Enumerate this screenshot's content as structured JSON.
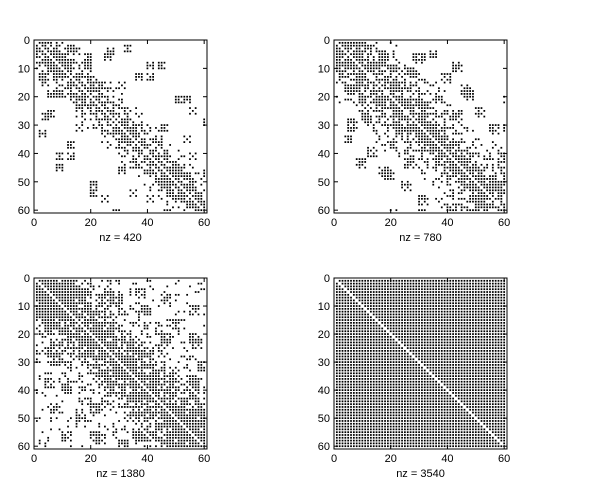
{
  "chart_data": [
    {
      "type": "scatter",
      "subtype": "sparsity-pattern",
      "xlabel": "nz = 420",
      "xlim": [
        0,
        61
      ],
      "ylim": [
        0,
        61
      ],
      "y_reversed": true,
      "xticks": [
        0,
        20,
        40,
        60
      ],
      "yticks": [
        0,
        10,
        20,
        30,
        40,
        50,
        60
      ],
      "marker_color": "#000000",
      "mode": "band",
      "band": [
        [
          0.06,
          0.1
        ],
        [
          0.2,
          0.95
        ]
      ],
      "clusters": [
        [
          5,
          3,
          3,
          1
        ],
        [
          10,
          5,
          3,
          1
        ],
        [
          14,
          3,
          3,
          1
        ],
        [
          2,
          12,
          3,
          1
        ],
        [
          5,
          18,
          3,
          1
        ],
        [
          3,
          26,
          3,
          1
        ],
        [
          12,
          40,
          3,
          1
        ],
        [
          8,
          44,
          3,
          1
        ],
        [
          20,
          53,
          3,
          1
        ],
        [
          18,
          8,
          3,
          1
        ],
        [
          25,
          5,
          3,
          1
        ],
        [
          32,
          2,
          3,
          1
        ],
        [
          40,
          8,
          3,
          1
        ],
        [
          36,
          12,
          3,
          1
        ],
        [
          55,
          24,
          3,
          1
        ],
        [
          53,
          34,
          3,
          1
        ],
        [
          50,
          20,
          3,
          1
        ],
        [
          45,
          30,
          3,
          1
        ],
        [
          30,
          15,
          3,
          1
        ],
        [
          40,
          55,
          3,
          1
        ],
        [
          28,
          60,
          3,
          1
        ],
        [
          60,
          46,
          3,
          1
        ]
      ],
      "block_density": 0.0,
      "seed": 11
    },
    {
      "type": "scatter",
      "subtype": "sparsity-pattern",
      "xlabel": "nz = 780",
      "xlim": [
        0,
        61
      ],
      "ylim": [
        0,
        61
      ],
      "y_reversed": true,
      "xticks": [
        0,
        20,
        40,
        60
      ],
      "yticks": [
        0,
        10,
        20,
        30,
        40,
        50,
        60
      ],
      "marker_color": "#000000",
      "mode": "band",
      "band": [
        [
          0.12,
          0.7
        ],
        [
          0.35,
          0.8
        ]
      ],
      "clusters": [
        [
          6,
          6,
          4,
          1
        ],
        [
          16,
          4,
          4,
          1
        ],
        [
          28,
          5,
          4,
          1
        ],
        [
          34,
          4,
          3,
          1
        ],
        [
          42,
          8,
          4,
          1
        ],
        [
          6,
          16,
          4,
          1
        ],
        [
          10,
          26,
          4,
          1
        ],
        [
          5,
          30,
          3,
          1
        ],
        [
          12,
          38,
          4,
          1
        ],
        [
          18,
          46,
          4,
          1
        ],
        [
          25,
          42,
          4,
          1
        ],
        [
          30,
          60,
          4,
          1
        ],
        [
          40,
          58,
          4,
          1
        ],
        [
          50,
          24,
          4,
          1
        ],
        [
          55,
          30,
          4,
          1
        ],
        [
          55,
          50,
          4,
          1
        ],
        [
          50,
          57,
          4,
          1
        ],
        [
          45,
          16,
          4,
          1
        ],
        [
          22,
          30,
          3,
          1
        ],
        [
          36,
          20,
          3,
          1
        ],
        [
          60,
          48,
          3,
          1
        ],
        [
          60,
          20,
          3,
          1
        ]
      ],
      "block_density": 0.0,
      "seed": 23
    },
    {
      "type": "scatter",
      "subtype": "sparsity-pattern",
      "xlabel": "nz = 1380",
      "xlim": [
        0,
        61
      ],
      "ylim": [
        0,
        61
      ],
      "y_reversed": true,
      "xticks": [
        0,
        20,
        40,
        60
      ],
      "yticks": [
        0,
        10,
        20,
        30,
        40,
        50,
        60
      ],
      "marker_color": "#000000",
      "mode": "band",
      "band": [
        [
          0.25,
          0.85
        ],
        [
          0.5,
          0.65
        ]
      ],
      "clusters": [
        [
          6,
          6,
          5,
          1
        ],
        [
          15,
          4,
          4,
          1
        ],
        [
          25,
          5,
          4,
          1
        ],
        [
          36,
          4,
          4,
          1
        ],
        [
          45,
          6,
          4,
          1
        ],
        [
          5,
          15,
          4,
          1
        ],
        [
          6,
          28,
          4,
          1
        ],
        [
          10,
          38,
          4,
          1
        ],
        [
          15,
          48,
          4,
          1
        ],
        [
          20,
          55,
          4,
          1
        ],
        [
          30,
          58,
          4,
          1
        ],
        [
          40,
          55,
          4,
          1
        ],
        [
          50,
          45,
          4,
          1
        ],
        [
          55,
          35,
          4,
          1
        ],
        [
          56,
          22,
          4,
          1
        ],
        [
          55,
          10,
          4,
          1
        ],
        [
          45,
          20,
          4,
          1
        ],
        [
          20,
          20,
          4,
          1
        ],
        [
          40,
          40,
          4,
          1
        ],
        [
          58,
          55,
          4,
          1
        ]
      ],
      "block_density": 0.75,
      "seed": 37
    },
    {
      "type": "scatter",
      "subtype": "sparsity-pattern",
      "xlabel": "nz = 3540",
      "xlim": [
        0,
        61
      ],
      "ylim": [
        0,
        61
      ],
      "y_reversed": true,
      "xticks": [
        0,
        20,
        40,
        60
      ],
      "yticks": [
        0,
        10,
        20,
        30,
        40,
        50,
        60
      ],
      "marker_color": "#000000",
      "mode": "full",
      "band": [],
      "clusters": [],
      "block_density": 0.0,
      "seed": 41
    }
  ]
}
